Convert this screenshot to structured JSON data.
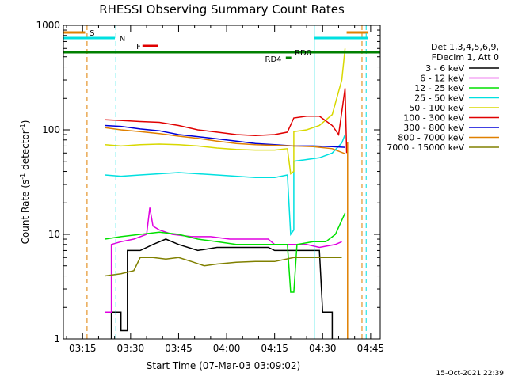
{
  "chart_data": {
    "type": "line",
    "title": "RHESSI Observing Summary Count Rates",
    "xlabel": "Start Time (07-Mar-03 03:09:02)",
    "ylabel_main": "Count Rate (s",
    "ylabel_sup1": "-1",
    "ylabel_mid": " detector",
    "ylabel_sup2": "-1",
    "ylabel_end": ")",
    "yscale": "log",
    "ylim": [
      1,
      1000
    ],
    "xlim_minutes": [
      0,
      99
    ],
    "x_ticks": [
      {
        "label": "03:15",
        "minutes": 6
      },
      {
        "label": "03:30",
        "minutes": 21
      },
      {
        "label": "03:45",
        "minutes": 36
      },
      {
        "label": "04:00",
        "minutes": 51
      },
      {
        "label": "04:15",
        "minutes": 66
      },
      {
        "label": "04:30",
        "minutes": 81
      },
      {
        "label": "04:45",
        "minutes": 96
      }
    ],
    "y_ticks": [
      {
        "label": "1",
        "value": 1
      },
      {
        "label": "10",
        "value": 10
      },
      {
        "label": "100",
        "value": 100
      },
      {
        "label": "1000",
        "value": 1000
      }
    ],
    "legend": {
      "header": [
        "Det 1,3,4,5,6,9,",
        "FDecim 1, Att 0"
      ],
      "placement": "right"
    },
    "series": [
      {
        "name": "3 - 6 keV",
        "color": "#000000",
        "points": [
          [
            15,
            1
          ],
          [
            15,
            1.8
          ],
          [
            18,
            1.8
          ],
          [
            18,
            1.2
          ],
          [
            20,
            1.2
          ],
          [
            20,
            7
          ],
          [
            24,
            7
          ],
          [
            28,
            8
          ],
          [
            32,
            9
          ],
          [
            36,
            8
          ],
          [
            42,
            7
          ],
          [
            48,
            7.5
          ],
          [
            54,
            7.5
          ],
          [
            60,
            7.5
          ],
          [
            64,
            7.5
          ],
          [
            66,
            7
          ],
          [
            80,
            7
          ],
          [
            81,
            1.8
          ],
          [
            84,
            1.8
          ],
          [
            84,
            1
          ]
        ]
      },
      {
        "name": "6 - 12 keV",
        "color": "#e000e0",
        "points": [
          [
            13,
            1.8
          ],
          [
            15,
            1.8
          ],
          [
            15,
            8
          ],
          [
            18,
            8.5
          ],
          [
            22,
            9
          ],
          [
            26,
            10
          ],
          [
            27,
            18
          ],
          [
            28,
            12
          ],
          [
            30,
            11
          ],
          [
            34,
            10
          ],
          [
            40,
            9.5
          ],
          [
            46,
            9.5
          ],
          [
            52,
            9
          ],
          [
            58,
            9
          ],
          [
            64,
            9
          ],
          [
            66,
            8
          ],
          [
            76,
            8
          ],
          [
            80,
            7.5
          ],
          [
            85,
            8
          ],
          [
            87,
            8.5
          ]
        ]
      },
      {
        "name": "12 - 25 keV",
        "color": "#00e000",
        "points": [
          [
            13,
            9
          ],
          [
            18,
            9.5
          ],
          [
            24,
            10
          ],
          [
            30,
            10.5
          ],
          [
            36,
            10
          ],
          [
            42,
            9
          ],
          [
            48,
            8.5
          ],
          [
            54,
            8
          ],
          [
            60,
            8
          ],
          [
            66,
            8
          ],
          [
            70,
            8
          ],
          [
            71,
            2.8
          ],
          [
            72,
            2.8
          ],
          [
            73,
            8
          ],
          [
            78,
            8.5
          ],
          [
            82,
            8.5
          ],
          [
            85,
            10
          ],
          [
            88,
            16
          ]
        ]
      },
      {
        "name": "25 - 50 keV",
        "color": "#00e0e0",
        "points": [
          [
            13,
            37
          ],
          [
            18,
            36
          ],
          [
            24,
            37
          ],
          [
            30,
            38
          ],
          [
            36,
            39
          ],
          [
            42,
            38
          ],
          [
            48,
            37
          ],
          [
            54,
            36
          ],
          [
            60,
            35
          ],
          [
            66,
            35
          ],
          [
            70,
            37
          ],
          [
            71,
            10
          ],
          [
            72,
            11
          ],
          [
            72,
            50
          ],
          [
            76,
            52
          ],
          [
            80,
            54
          ],
          [
            84,
            60
          ],
          [
            87,
            75
          ],
          [
            88,
            90
          ]
        ]
      },
      {
        "name": "50 - 100 keV",
        "color": "#d8d800",
        "points": [
          [
            13,
            72
          ],
          [
            18,
            70
          ],
          [
            24,
            72
          ],
          [
            30,
            73
          ],
          [
            36,
            72
          ],
          [
            42,
            70
          ],
          [
            48,
            67
          ],
          [
            54,
            65
          ],
          [
            60,
            64
          ],
          [
            66,
            64
          ],
          [
            70,
            66
          ],
          [
            71,
            38
          ],
          [
            72,
            40
          ],
          [
            72,
            96
          ],
          [
            76,
            100
          ],
          [
            80,
            110
          ],
          [
            84,
            140
          ],
          [
            87,
            300
          ],
          [
            88,
            600
          ]
        ]
      },
      {
        "name": "100 - 300 keV",
        "color": "#e00000",
        "points": [
          [
            13,
            125
          ],
          [
            18,
            123
          ],
          [
            24,
            120
          ],
          [
            30,
            118
          ],
          [
            36,
            110
          ],
          [
            42,
            100
          ],
          [
            48,
            95
          ],
          [
            54,
            90
          ],
          [
            60,
            88
          ],
          [
            66,
            90
          ],
          [
            70,
            95
          ],
          [
            72,
            130
          ],
          [
            76,
            135
          ],
          [
            80,
            135
          ],
          [
            84,
            110
          ],
          [
            86,
            90
          ],
          [
            88,
            250
          ],
          [
            88.5,
            60
          ]
        ]
      },
      {
        "name": "300 - 800 keV",
        "color": "#0000d8",
        "points": [
          [
            13,
            110
          ],
          [
            18,
            108
          ],
          [
            24,
            102
          ],
          [
            30,
            98
          ],
          [
            36,
            90
          ],
          [
            42,
            86
          ],
          [
            48,
            82
          ],
          [
            54,
            78
          ],
          [
            60,
            74
          ],
          [
            66,
            72
          ],
          [
            72,
            70
          ],
          [
            78,
            70
          ],
          [
            84,
            69
          ],
          [
            88,
            68
          ]
        ]
      },
      {
        "name": "800 - 7000 keV",
        "color": "#e08000",
        "points": [
          [
            13,
            105
          ],
          [
            18,
            100
          ],
          [
            24,
            96
          ],
          [
            30,
            92
          ],
          [
            36,
            87
          ],
          [
            42,
            83
          ],
          [
            48,
            78
          ],
          [
            54,
            74
          ],
          [
            60,
            72
          ],
          [
            66,
            71
          ],
          [
            72,
            70
          ],
          [
            78,
            69
          ],
          [
            84,
            66
          ],
          [
            88,
            59
          ]
        ]
      },
      {
        "name": "7000 - 15000 keV",
        "color": "#808000",
        "points": [
          [
            13,
            4
          ],
          [
            18,
            4.2
          ],
          [
            22,
            4.5
          ],
          [
            24,
            6
          ],
          [
            28,
            6
          ],
          [
            32,
            5.8
          ],
          [
            36,
            6
          ],
          [
            40,
            5.5
          ],
          [
            44,
            5
          ],
          [
            48,
            5.2
          ],
          [
            54,
            5.4
          ],
          [
            60,
            5.5
          ],
          [
            66,
            5.5
          ],
          [
            72,
            6
          ],
          [
            78,
            6
          ],
          [
            84,
            6
          ],
          [
            87,
            6
          ]
        ]
      }
    ],
    "annotations": [
      {
        "label": "S",
        "color": "#e08000"
      },
      {
        "label": "N",
        "color": "#00e0e0"
      },
      {
        "label": "F",
        "color": "#e00000"
      },
      {
        "label": "RD0",
        "color": "#008000"
      },
      {
        "label": "RD4",
        "color": "#008000"
      }
    ],
    "footer_date": "15-Oct-2021 22:39"
  }
}
